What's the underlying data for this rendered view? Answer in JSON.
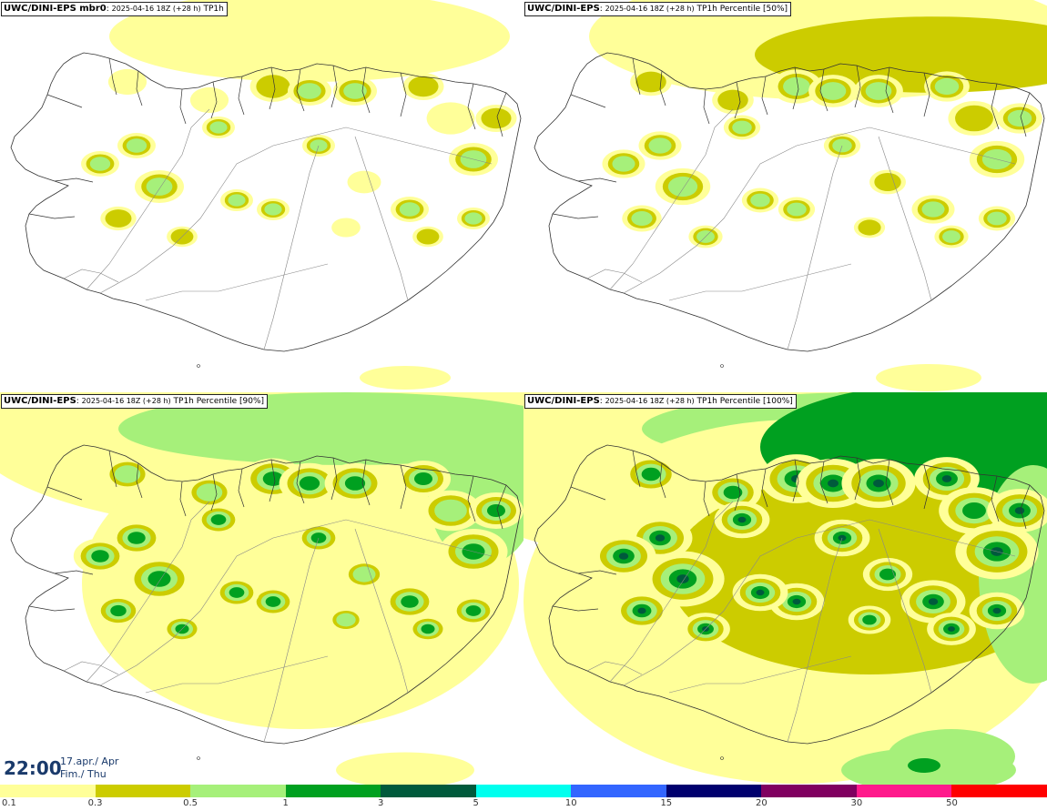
{
  "panels": [
    {
      "source": "UWC/DINI-EPS mbr0",
      "run": "2025-04-16 18Z (+28 h)",
      "field": "TP1h",
      "level": 1
    },
    {
      "source": "UWC/DINI-EPS",
      "run": "2025-04-16 18Z (+28 h)",
      "field": "TP1h Percentile [50%]",
      "level": 1.4
    },
    {
      "source": "UWC/DINI-EPS",
      "run": "2025-04-16 18Z (+28 h)",
      "field": "TP1h Percentile [90%]",
      "level": 2.3
    },
    {
      "source": "UWC/DINI-EPS",
      "run": "2025-04-16 18Z (+28 h)",
      "field": "TP1h Percentile [100%]",
      "level": 3.3
    }
  ],
  "valid_time": {
    "time": "22:00",
    "date_line1": "17.apr./ Apr",
    "date_line2": "Fim./ Thu"
  },
  "legend": {
    "colors": [
      "#ffff99",
      "#cccc00",
      "#a6f07a",
      "#00a020",
      "#005a3c",
      "#00ffee",
      "#3366ff",
      "#00006e",
      "#800060",
      "#ff1a8c",
      "#ff0000"
    ],
    "ticks": [
      "0.1",
      "0.3",
      "0.5",
      "1",
      "3",
      "5",
      "10",
      "15",
      "20",
      "30",
      "50"
    ]
  }
}
